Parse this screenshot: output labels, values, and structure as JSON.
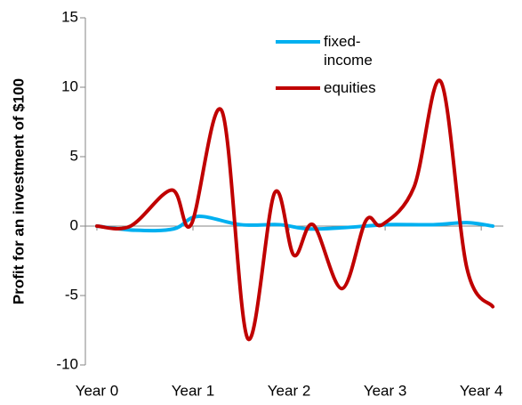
{
  "chart_data": {
    "type": "line",
    "y_label": "Profit for an investment of $100",
    "xlim": [
      -0.12,
      4.23
    ],
    "ylim": [
      -10,
      15
    ],
    "yticks": [
      -10,
      -5,
      0,
      5,
      10,
      15
    ],
    "xticks": [
      {
        "value": 0,
        "label": "Year 0"
      },
      {
        "value": 1,
        "label": "Year 1"
      },
      {
        "value": 2,
        "label": "Year 2"
      },
      {
        "value": 3,
        "label": "Year 3"
      },
      {
        "value": 4,
        "label": "Year 4"
      }
    ],
    "series": [
      {
        "name": "fixed-income",
        "color": "#00b0f0",
        "x": [
          0,
          0.4,
          0.8,
          1.05,
          1.5,
          1.9,
          2.2,
          2.6,
          3.0,
          3.5,
          3.85,
          4.12
        ],
        "values": [
          0,
          -0.3,
          -0.2,
          0.7,
          0.1,
          0.1,
          -0.2,
          -0.1,
          0.1,
          0.1,
          0.25,
          0
        ]
      },
      {
        "name": "equities",
        "color": "#c00000",
        "x": [
          0,
          0.35,
          0.78,
          0.98,
          1.3,
          1.57,
          1.85,
          2.05,
          2.25,
          2.55,
          2.8,
          2.97,
          3.3,
          3.58,
          3.85,
          4.12
        ],
        "values": [
          0,
          0,
          2.6,
          0.1,
          8.3,
          -8.1,
          2.4,
          -2.1,
          0.1,
          -4.5,
          0.4,
          0.1,
          2.8,
          10.4,
          -3,
          -5.8
        ]
      }
    ]
  }
}
